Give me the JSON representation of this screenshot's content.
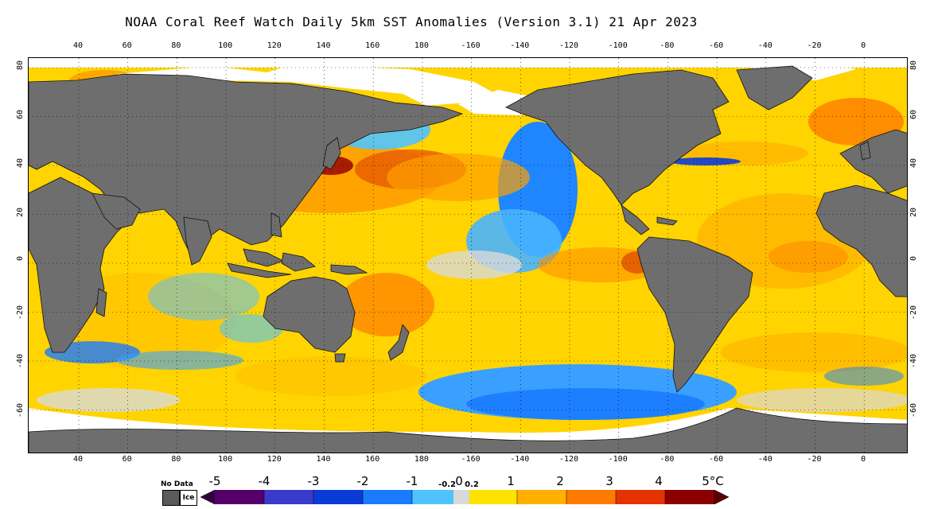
{
  "title": "NOAA Coral Reef Watch Daily 5km SST Anomalies (Version 3.1)  21 Apr 2023",
  "lon_ticks": [
    "40",
    "60",
    "80",
    "100",
    "120",
    "140",
    "160",
    "180",
    "-160",
    "-140",
    "-120",
    "-100",
    "-80",
    "-60",
    "-40",
    "-20",
    "0"
  ],
  "lat_ticks": [
    "80",
    "60",
    "40",
    "20",
    "0",
    "-20",
    "-40",
    "-60"
  ],
  "legend": {
    "no_data_label": "No Data",
    "ice_label": "Ice",
    "scale_labels": [
      "-5",
      "-4",
      "-3",
      "-2",
      "-1",
      "-0.2",
      "0",
      "0.2",
      "1",
      "2",
      "3",
      "4",
      "5°C"
    ]
  },
  "colors": {
    "land": "#6e6e6e",
    "ice": "#ffffff",
    "neutral": "#d9d9d9",
    "warm_1": "#ffe300",
    "warm_2": "#ffb000",
    "warm_3": "#ff7a00",
    "warm_4": "#e53300",
    "hot": "#8a0000",
    "cool_1": "#4fc3ff",
    "cool_2": "#1a7bff",
    "cool_3": "#0a3bd6",
    "cold": "#2a006a"
  }
}
